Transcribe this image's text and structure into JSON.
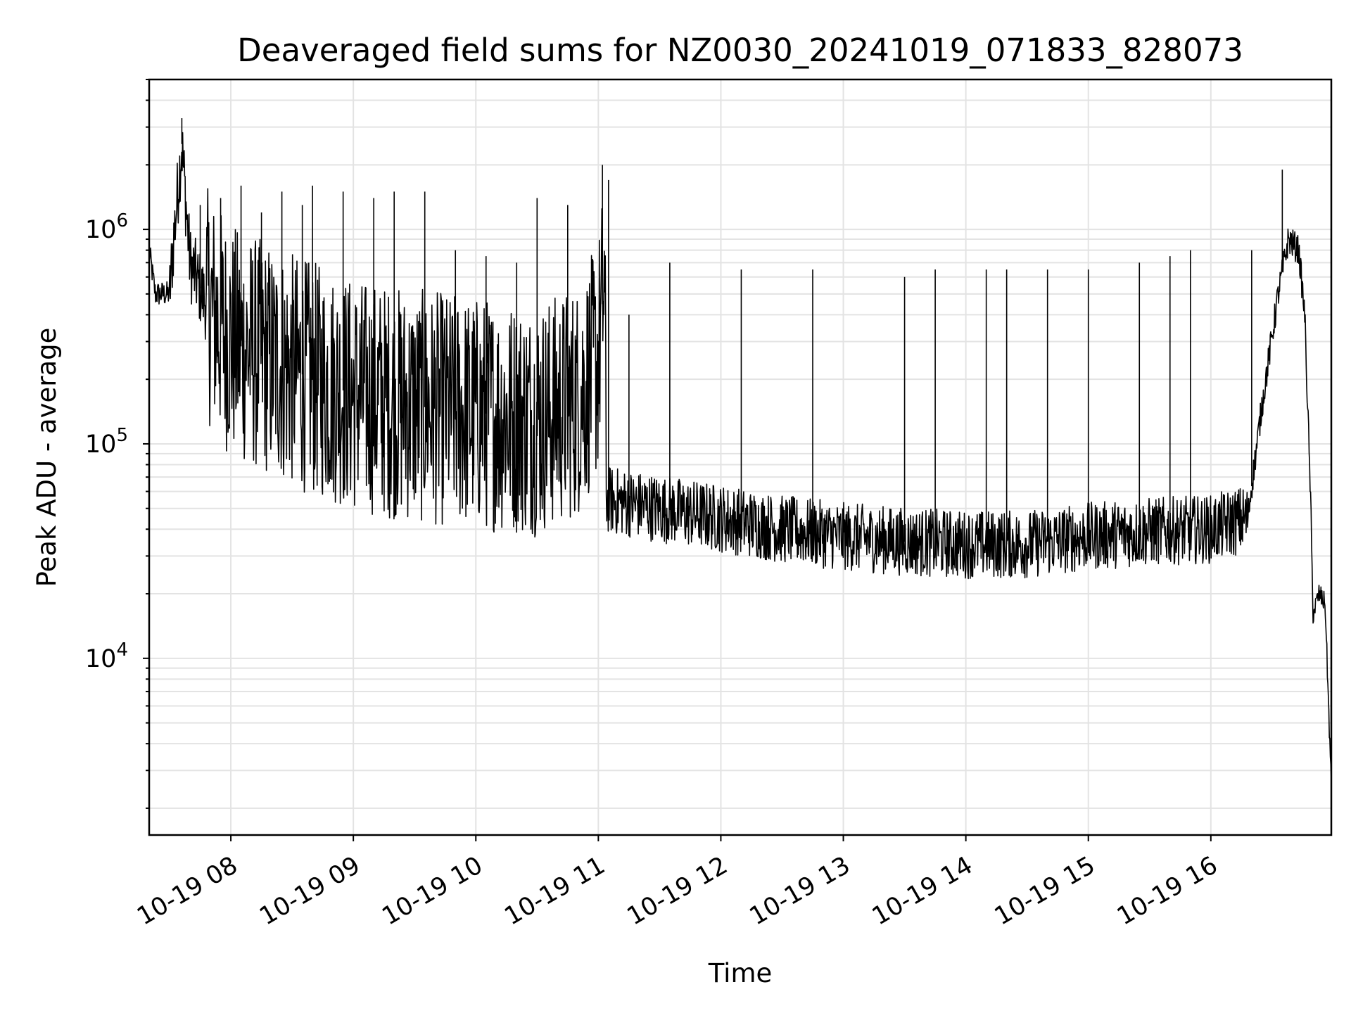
{
  "chart_data": {
    "type": "line",
    "title": "Deaveraged field sums for NZ0030_20241019_071833_828073",
    "xlabel": "Time",
    "ylabel": "Peak ADU - average",
    "yscale": "log",
    "ylim": [
      1500,
      5000000
    ],
    "xlim": [
      "2024-10-19 07:20",
      "2024-10-19 16:59"
    ],
    "grid": true,
    "x_ticks": [
      {
        "value": "2024-10-19 08:00",
        "label": "10-19 08"
      },
      {
        "value": "2024-10-19 09:00",
        "label": "10-19 09"
      },
      {
        "value": "2024-10-19 10:00",
        "label": "10-19 10"
      },
      {
        "value": "2024-10-19 11:00",
        "label": "10-19 11"
      },
      {
        "value": "2024-10-19 12:00",
        "label": "10-19 12"
      },
      {
        "value": "2024-10-19 13:00",
        "label": "10-19 13"
      },
      {
        "value": "2024-10-19 14:00",
        "label": "10-19 14"
      },
      {
        "value": "2024-10-19 15:00",
        "label": "10-19 15"
      },
      {
        "value": "2024-10-19 16:00",
        "label": "10-19 16"
      }
    ],
    "y_ticks": [
      {
        "value": 10000,
        "base": "10",
        "exp": "4"
      },
      {
        "value": 100000,
        "base": "10",
        "exp": "5"
      },
      {
        "value": 1000000,
        "base": "10",
        "exp": "6"
      }
    ],
    "series": [
      {
        "color": "#000000",
        "points": [
          {
            "x": "2024-10-19 07:20",
            "y": 800000
          },
          {
            "x": "2024-10-19 07:23",
            "y": 500000
          },
          {
            "x": "2024-10-19 07:30",
            "y": 500000
          },
          {
            "x": "2024-10-19 07:32",
            "y": 900000
          },
          {
            "x": "2024-10-19 07:36",
            "y": 2500000
          },
          {
            "x": "2024-10-19 07:40",
            "y": 700000
          },
          {
            "x": "2024-10-19 07:48",
            "y": 450000
          },
          {
            "x": "2024-10-19 08:00",
            "y": 300000
          },
          {
            "x": "2024-10-19 08:30",
            "y": 220000
          },
          {
            "x": "2024-10-19 09:00",
            "y": 170000
          },
          {
            "x": "2024-10-19 09:30",
            "y": 150000
          },
          {
            "x": "2024-10-19 10:00",
            "y": 140000
          },
          {
            "x": "2024-10-19 10:30",
            "y": 130000
          },
          {
            "x": "2024-10-19 10:50",
            "y": 160000
          },
          {
            "x": "2024-10-19 11:00",
            "y": 250000
          },
          {
            "x": "2024-10-19 11:03",
            "y": 600000
          },
          {
            "x": "2024-10-19 11:04",
            "y": 55000
          },
          {
            "x": "2024-10-19 11:30",
            "y": 50000
          },
          {
            "x": "2024-10-19 12:00",
            "y": 45000
          },
          {
            "x": "2024-10-19 12:30",
            "y": 40000
          },
          {
            "x": "2024-10-19 13:00",
            "y": 37000
          },
          {
            "x": "2024-10-19 13:30",
            "y": 35000
          },
          {
            "x": "2024-10-19 14:00",
            "y": 34000
          },
          {
            "x": "2024-10-19 14:30",
            "y": 34000
          },
          {
            "x": "2024-10-19 15:00",
            "y": 37000
          },
          {
            "x": "2024-10-19 15:30",
            "y": 39000
          },
          {
            "x": "2024-10-19 16:00",
            "y": 40000
          },
          {
            "x": "2024-10-19 16:18",
            "y": 45000
          },
          {
            "x": "2024-10-19 16:25",
            "y": 150000
          },
          {
            "x": "2024-10-19 16:33",
            "y": 500000
          },
          {
            "x": "2024-10-19 16:38",
            "y": 900000
          },
          {
            "x": "2024-10-19 16:43",
            "y": 800000
          },
          {
            "x": "2024-10-19 16:46",
            "y": 400000
          },
          {
            "x": "2024-10-19 16:49",
            "y": 50000
          },
          {
            "x": "2024-10-19 16:50",
            "y": 16000
          },
          {
            "x": "2024-10-19 16:53",
            "y": 20000
          },
          {
            "x": "2024-10-19 16:56",
            "y": 18000
          },
          {
            "x": "2024-10-19 16:59",
            "y": 2500
          }
        ],
        "spikes": [
          {
            "x": "2024-10-19 07:36",
            "y": 3300000
          },
          {
            "x": "2024-10-19 07:45",
            "y": 1300000
          },
          {
            "x": "2024-10-19 07:55",
            "y": 1400000
          },
          {
            "x": "2024-10-19 08:05",
            "y": 1600000
          },
          {
            "x": "2024-10-19 08:15",
            "y": 1200000
          },
          {
            "x": "2024-10-19 08:25",
            "y": 1500000
          },
          {
            "x": "2024-10-19 08:35",
            "y": 1300000
          },
          {
            "x": "2024-10-19 08:40",
            "y": 1600000
          },
          {
            "x": "2024-10-19 08:55",
            "y": 1500000
          },
          {
            "x": "2024-10-19 09:10",
            "y": 1400000
          },
          {
            "x": "2024-10-19 09:20",
            "y": 1500000
          },
          {
            "x": "2024-10-19 09:35",
            "y": 1500000
          },
          {
            "x": "2024-10-19 09:50",
            "y": 800000
          },
          {
            "x": "2024-10-19 10:05",
            "y": 750000
          },
          {
            "x": "2024-10-19 10:20",
            "y": 700000
          },
          {
            "x": "2024-10-19 10:30",
            "y": 1400000
          },
          {
            "x": "2024-10-19 10:45",
            "y": 1300000
          },
          {
            "x": "2024-10-19 11:02",
            "y": 2000000
          },
          {
            "x": "2024-10-19 11:05",
            "y": 1700000
          },
          {
            "x": "2024-10-19 11:15",
            "y": 400000
          },
          {
            "x": "2024-10-19 11:35",
            "y": 700000
          },
          {
            "x": "2024-10-19 12:10",
            "y": 650000
          },
          {
            "x": "2024-10-19 12:45",
            "y": 650000
          },
          {
            "x": "2024-10-19 13:30",
            "y": 600000
          },
          {
            "x": "2024-10-19 13:45",
            "y": 650000
          },
          {
            "x": "2024-10-19 14:10",
            "y": 650000
          },
          {
            "x": "2024-10-19 14:20",
            "y": 650000
          },
          {
            "x": "2024-10-19 14:40",
            "y": 650000
          },
          {
            "x": "2024-10-19 15:00",
            "y": 650000
          },
          {
            "x": "2024-10-19 15:25",
            "y": 700000
          },
          {
            "x": "2024-10-19 15:40",
            "y": 750000
          },
          {
            "x": "2024-10-19 15:50",
            "y": 800000
          },
          {
            "x": "2024-10-19 16:20",
            "y": 800000
          },
          {
            "x": "2024-10-19 16:35",
            "y": 1900000
          }
        ]
      }
    ]
  }
}
